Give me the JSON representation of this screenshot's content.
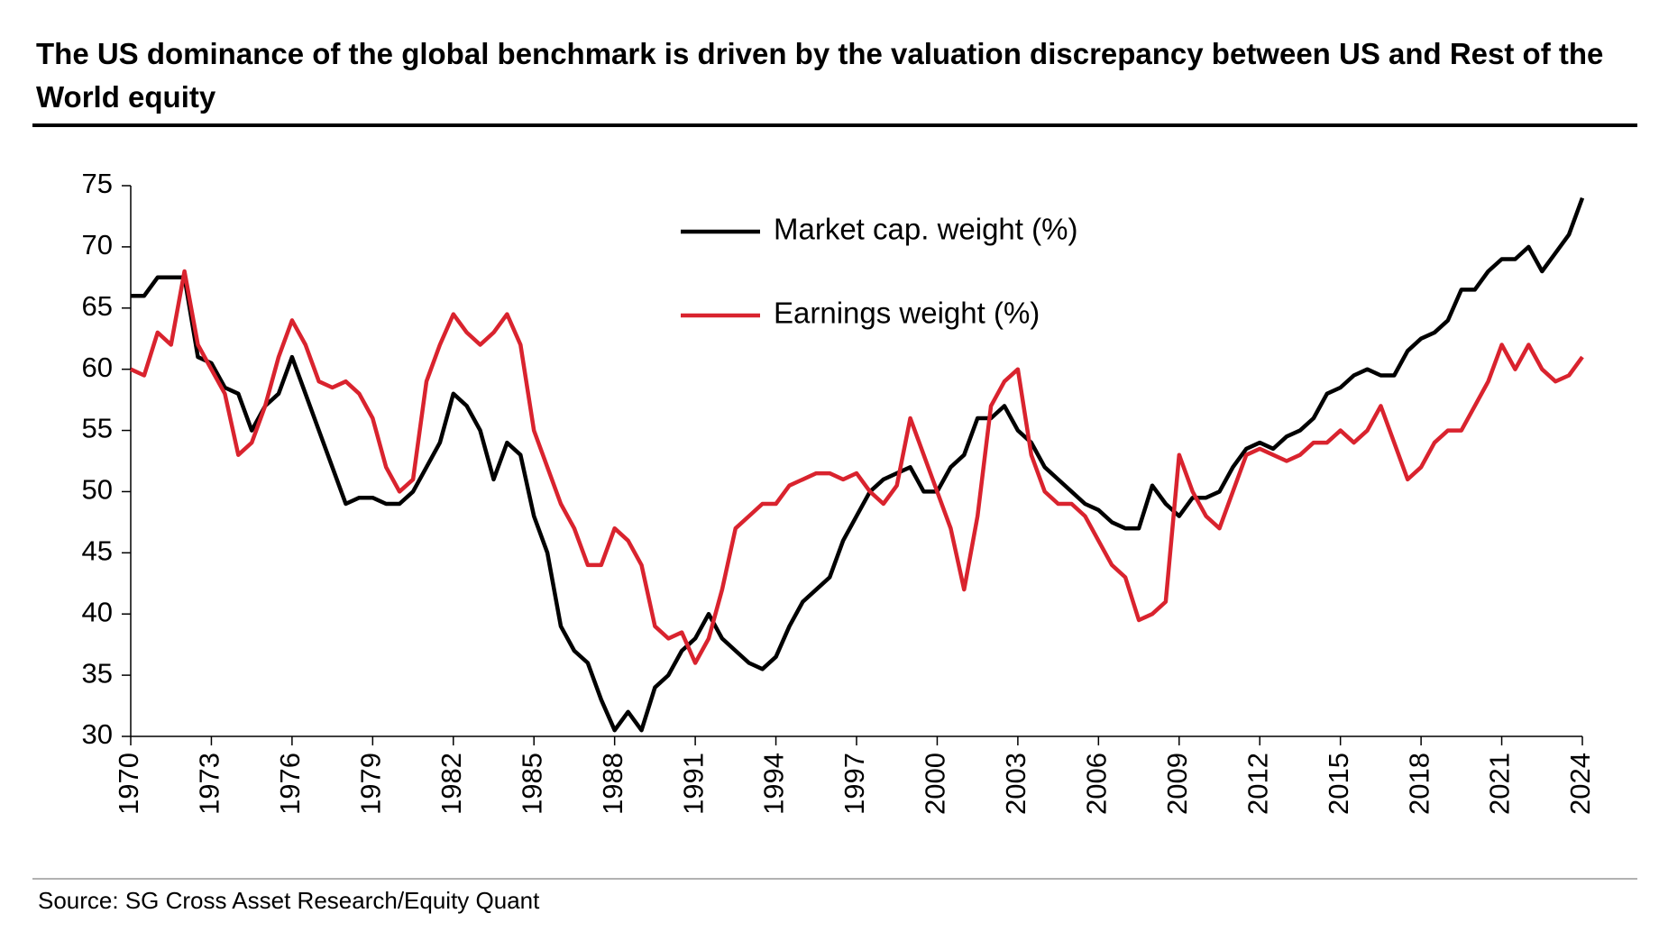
{
  "chart_data": {
    "type": "line",
    "title": "The US dominance of the global benchmark is driven by the valuation discrepancy between US and Rest of the World equity",
    "source": "Source: SG Cross Asset Research/Equity Quant",
    "x": [
      1970,
      1970.5,
      1971,
      1971.5,
      1972,
      1972.5,
      1973,
      1973.5,
      1974,
      1974.5,
      1975,
      1975.5,
      1976,
      1976.5,
      1977,
      1977.5,
      1978,
      1978.5,
      1979,
      1979.5,
      1980,
      1980.5,
      1981,
      1981.5,
      1982,
      1982.5,
      1983,
      1983.5,
      1984,
      1984.5,
      1985,
      1985.5,
      1986,
      1986.5,
      1987,
      1987.5,
      1988,
      1988.5,
      1989,
      1989.5,
      1990,
      1990.5,
      1991,
      1991.5,
      1992,
      1992.5,
      1993,
      1993.5,
      1994,
      1994.5,
      1995,
      1995.5,
      1996,
      1996.5,
      1997,
      1997.5,
      1998,
      1998.5,
      1999,
      1999.5,
      2000,
      2000.5,
      2001,
      2001.5,
      2002,
      2002.5,
      2003,
      2003.5,
      2004,
      2004.5,
      2005,
      2005.5,
      2006,
      2006.5,
      2007,
      2007.5,
      2008,
      2008.5,
      2009,
      2009.5,
      2010,
      2010.5,
      2011,
      2011.5,
      2012,
      2012.5,
      2013,
      2013.5,
      2014,
      2014.5,
      2015,
      2015.5,
      2016,
      2016.5,
      2017,
      2017.5,
      2018,
      2018.5,
      2019,
      2019.5,
      2020,
      2020.5,
      2021,
      2021.5,
      2022,
      2022.5,
      2023,
      2023.5,
      2024
    ],
    "series": [
      {
        "name": "Market cap. weight (%)",
        "color": "#000000",
        "values": [
          66,
          66,
          67.5,
          67.5,
          67.5,
          61,
          60.5,
          58.5,
          58,
          55,
          57,
          58,
          61,
          58,
          55,
          52,
          49,
          49.5,
          49.5,
          49,
          49,
          50,
          52,
          54,
          58,
          57,
          55,
          51,
          54,
          53,
          48,
          45,
          39,
          37,
          36,
          33,
          30.5,
          32,
          30.5,
          34,
          35,
          37,
          38,
          40,
          38,
          37,
          36,
          35.5,
          36.5,
          39,
          41,
          42,
          43,
          46,
          48,
          50,
          51,
          51.5,
          52,
          50,
          50,
          52,
          53,
          56,
          56,
          57,
          55,
          54,
          52,
          51,
          50,
          49,
          48.5,
          47.5,
          47,
          47,
          50.5,
          49,
          48,
          49.5,
          49.5,
          50,
          52,
          53.5,
          54,
          53.5,
          54.5,
          55,
          56,
          58,
          58.5,
          59.5,
          60,
          59.5,
          59.5,
          61.5,
          62.5,
          63,
          64,
          66.5,
          66.5,
          68,
          69,
          69,
          70,
          68,
          69.5,
          71,
          74
        ]
      },
      {
        "name": "Earnings weight (%)",
        "color": "#d9232e",
        "values": [
          60,
          59.5,
          63,
          62,
          68,
          62,
          60,
          58,
          53,
          54,
          57,
          61,
          64,
          62,
          59,
          58.5,
          59,
          58,
          56,
          52,
          50,
          51,
          59,
          62,
          64.5,
          63,
          62,
          63,
          64.5,
          62,
          55,
          52,
          49,
          47,
          44,
          44,
          47,
          46,
          44,
          39,
          38,
          38.5,
          36,
          38,
          42,
          47,
          48,
          49,
          49,
          50.5,
          51,
          51.5,
          51.5,
          51,
          51.5,
          50,
          49,
          50.5,
          56,
          53,
          50,
          47,
          42,
          48,
          57,
          59,
          60,
          53,
          50,
          49,
          49,
          48,
          46,
          44,
          43,
          39.5,
          40,
          41,
          53,
          50,
          48,
          47,
          50,
          53,
          53.5,
          53,
          52.5,
          53,
          54,
          54,
          55,
          54,
          55,
          57,
          54,
          51,
          52,
          54,
          55,
          55,
          57,
          59,
          62,
          60,
          62,
          60,
          59,
          59.5,
          61
        ]
      }
    ],
    "xlim": [
      1970,
      2024
    ],
    "xticks": [
      1970,
      1973,
      1976,
      1979,
      1982,
      1985,
      1988,
      1991,
      1994,
      1997,
      2000,
      2003,
      2006,
      2009,
      2012,
      2015,
      2018,
      2021,
      2024
    ],
    "ylim": [
      30,
      75
    ],
    "yticks": [
      30,
      35,
      40,
      45,
      50,
      55,
      60,
      65,
      70,
      75
    ],
    "grid": false,
    "legend": "top"
  }
}
